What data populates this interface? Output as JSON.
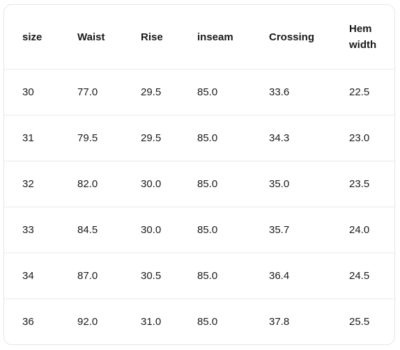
{
  "table": {
    "headers": [
      "size",
      "Waist",
      "Rise",
      "inseam",
      "Crossing",
      "Hem width"
    ],
    "rows": [
      [
        "30",
        "77.0",
        "29.5",
        "85.0",
        "33.6",
        "22.5"
      ],
      [
        "31",
        "79.5",
        "29.5",
        "85.0",
        "34.3",
        "23.0"
      ],
      [
        "32",
        "82.0",
        "30.0",
        "85.0",
        "35.0",
        "23.5"
      ],
      [
        "33",
        "84.5",
        "30.0",
        "85.0",
        "35.7",
        "24.0"
      ],
      [
        "34",
        "87.0",
        "30.5",
        "85.0",
        "36.4",
        "24.5"
      ],
      [
        "36",
        "92.0",
        "31.0",
        "85.0",
        "37.8",
        "25.5"
      ]
    ]
  }
}
